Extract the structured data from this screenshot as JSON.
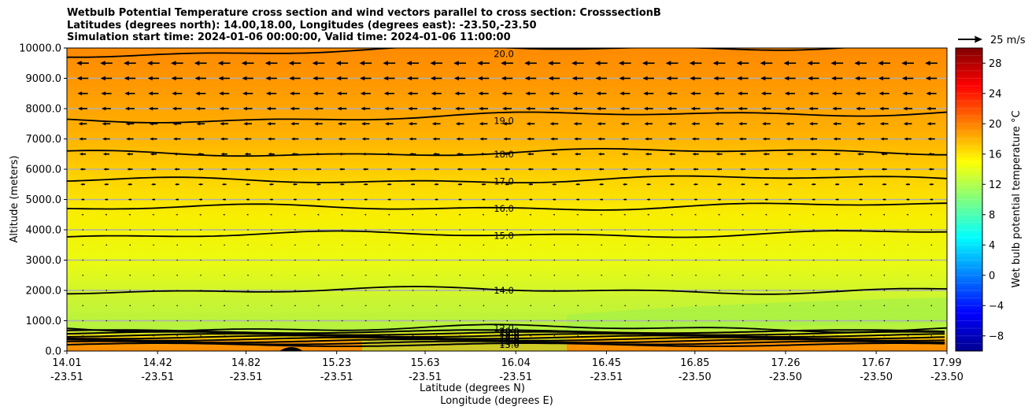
{
  "chart_data": {
    "type": "contour",
    "title_lines": [
      "Wetbulb Potential Temperature cross section and wind vectors parallel to cross section: CrosssectionB",
      "Latitudes (degrees north): 14.00,18.00, Longitudes (degrees east): -23.50,-23.50",
      "Simulation start time: 2024-01-06 00:00:00, Valid time: 2024-01-06 11:00:00"
    ],
    "xlabel": "Latitude (degrees N)",
    "xlabel2": "Longitude (degrees E)",
    "ylabel": "Altitude (meters)",
    "xlim": [
      14.01,
      17.99
    ],
    "ylim": [
      0,
      10000
    ],
    "x_ticks": [
      {
        "lat": "14.01",
        "lon": "-23.51"
      },
      {
        "lat": "14.42",
        "lon": "-23.51"
      },
      {
        "lat": "14.82",
        "lon": "-23.51"
      },
      {
        "lat": "15.23",
        "lon": "-23.51"
      },
      {
        "lat": "15.63",
        "lon": "-23.51"
      },
      {
        "lat": "16.04",
        "lon": "-23.51"
      },
      {
        "lat": "16.45",
        "lon": "-23.51"
      },
      {
        "lat": "16.85",
        "lon": "-23.50"
      },
      {
        "lat": "17.26",
        "lon": "-23.50"
      },
      {
        "lat": "17.67",
        "lon": "-23.50"
      },
      {
        "lat": "17.99",
        "lon": "-23.50"
      }
    ],
    "y_ticks": [
      "0.0",
      "1000.0",
      "2000.0",
      "3000.0",
      "4000.0",
      "5000.0",
      "6000.0",
      "7000.0",
      "8000.0",
      "9000.0",
      "10000.0"
    ],
    "grid": "horizontal",
    "colorbar": {
      "label": "Wet bulb potential temperature °C",
      "ticks": [
        "−8",
        "−4",
        "0",
        "4",
        "8",
        "12",
        "16",
        "20",
        "24",
        "28"
      ],
      "tick_values": [
        -8,
        -4,
        0,
        4,
        8,
        12,
        16,
        20,
        24,
        28
      ],
      "range": [
        -10,
        30
      ],
      "colormap": "jet"
    },
    "quiver_key": "25 m/s",
    "contours": [
      {
        "level": 12.0,
        "label": "12.0",
        "y": [
          750
        ]
      },
      {
        "level": 14.0,
        "label": "14.0",
        "y": [
          2000
        ]
      },
      {
        "level": 15.0,
        "label": "15.0",
        "y": [
          3800
        ]
      },
      {
        "level": 16.0,
        "label": "16.0",
        "y": [
          4700
        ]
      },
      {
        "level": 17.0,
        "label": "17.0",
        "y": [
          5600
        ]
      },
      {
        "level": 18.0,
        "label": "18.0",
        "y": [
          6500
        ]
      },
      {
        "level": 19.0,
        "label": "19.0",
        "y": [
          7600
        ]
      },
      {
        "level": 20.0,
        "label": "20.0",
        "y": [
          9800
        ]
      }
    ],
    "surface_labels": [
      "13.0",
      "14.0",
      "15.0",
      "16.0",
      "17.0",
      "18.0",
      "19.0",
      "20.0"
    ],
    "colors": {
      "warm": "#ff8c00",
      "mid": "#ffe000",
      "cool": "#a8f040",
      "contour": "#000000"
    }
  }
}
